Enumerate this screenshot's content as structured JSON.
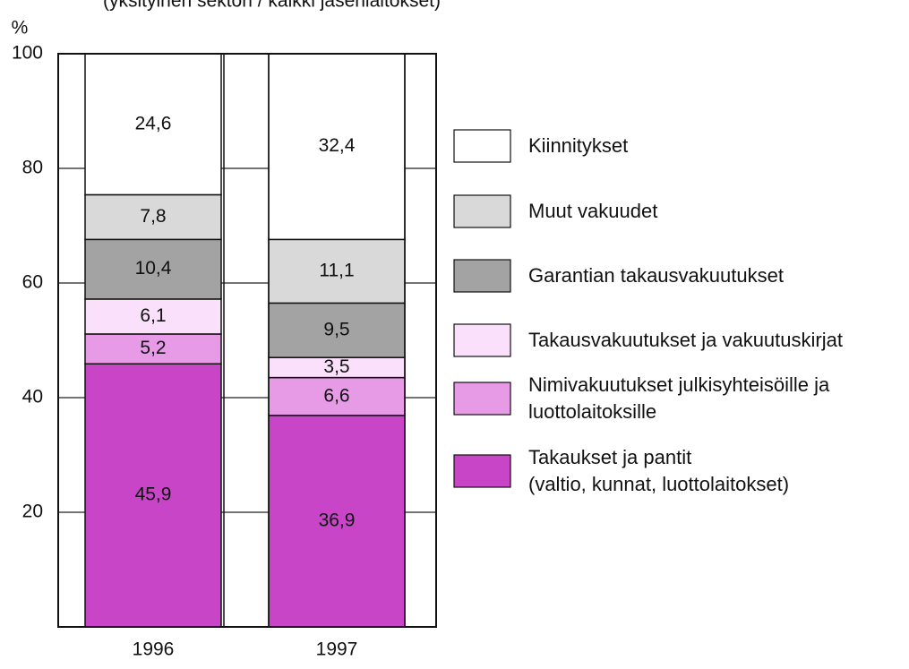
{
  "chart_data": {
    "type": "stacked_bar",
    "subtitle": "(yksityinen sektori / kaikki jäsenlaitokset)",
    "y_label": "%",
    "categories": [
      "1996",
      "1997"
    ],
    "series": [
      {
        "name": "Takaukset ja pantit\n(valtio, kunnat, luottolaitokset)",
        "color": "#c845c8",
        "values": [
          45.9,
          36.9
        ],
        "value_labels": [
          "45,9",
          "36,9"
        ]
      },
      {
        "name": "Nimivakuutukset julkisyhteisöille ja\nluottolaitoksille",
        "color": "#e79be7",
        "values": [
          5.2,
          6.6
        ],
        "value_labels": [
          "5,2",
          "6,6"
        ]
      },
      {
        "name": "Takausvakuutukset ja vakuutuskirjat",
        "color": "#fbe0fb",
        "values": [
          6.1,
          3.5
        ],
        "value_labels": [
          "6,1",
          "3,5"
        ]
      },
      {
        "name": "Garantian takausvakuutukset",
        "color": "#a3a3a3",
        "values": [
          10.4,
          9.5
        ],
        "value_labels": [
          "10,4",
          "9,5"
        ]
      },
      {
        "name": "Muut vakuudet",
        "color": "#d9d9d9",
        "values": [
          7.8,
          11.1
        ],
        "value_labels": [
          "7,8",
          "11,1"
        ]
      },
      {
        "name": "Kiinnitykset",
        "color": "#ffffff",
        "values": [
          24.6,
          32.4
        ],
        "value_labels": [
          "24,6",
          "32,4"
        ]
      }
    ],
    "ylim": [
      0,
      100
    ],
    "yticks": [
      20,
      40,
      60,
      80,
      100
    ],
    "grid": true
  }
}
